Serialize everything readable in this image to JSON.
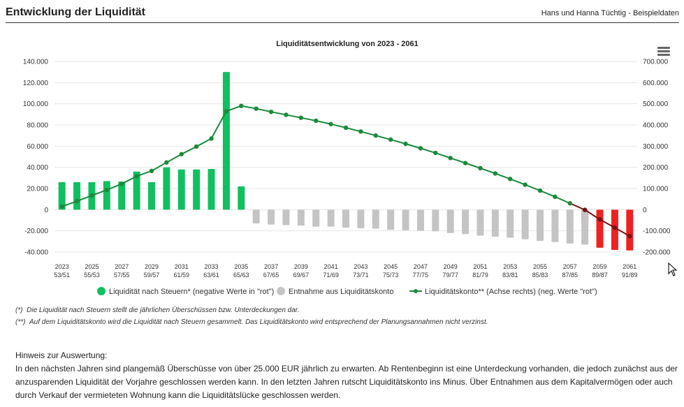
{
  "header": {
    "title": "Entwicklung der Liquidität",
    "client": "Hans und Hanna Tüchtig - Beispieldaten"
  },
  "chart_data": {
    "type": "bar",
    "title": "Liquiditätsentwicklung von 2023 - 2061",
    "x_labels": [
      {
        "year": "2023",
        "age": "53/51"
      },
      {
        "year": "2025",
        "age": "55/53"
      },
      {
        "year": "2027",
        "age": "57/55"
      },
      {
        "year": "2029",
        "age": "59/57"
      },
      {
        "year": "2031",
        "age": "61/59"
      },
      {
        "year": "2033",
        "age": "63/61"
      },
      {
        "year": "2035",
        "age": "65/63"
      },
      {
        "year": "2037",
        "age": "67/65"
      },
      {
        "year": "2039",
        "age": "69/67"
      },
      {
        "year": "2041",
        "age": "71/69"
      },
      {
        "year": "2043",
        "age": "73/71"
      },
      {
        "year": "2045",
        "age": "75/73"
      },
      {
        "year": "2047",
        "age": "77/75"
      },
      {
        "year": "2049",
        "age": "79/77"
      },
      {
        "year": "2051",
        "age": "81/79"
      },
      {
        "year": "2053",
        "age": "83/81"
      },
      {
        "year": "2055",
        "age": "85/83"
      },
      {
        "year": "2057",
        "age": "87/85"
      },
      {
        "year": "2059",
        "age": "89/87"
      },
      {
        "year": "2061",
        "age": "91/89"
      }
    ],
    "years": [
      2023,
      2024,
      2025,
      2026,
      2027,
      2028,
      2029,
      2030,
      2031,
      2032,
      2033,
      2034,
      2035,
      2036,
      2037,
      2038,
      2039,
      2040,
      2041,
      2042,
      2043,
      2044,
      2045,
      2046,
      2047,
      2048,
      2049,
      2050,
      2051,
      2052,
      2053,
      2054,
      2055,
      2056,
      2057,
      2058,
      2059,
      2060,
      2061
    ],
    "y_left": {
      "min": -40000,
      "max": 140000,
      "ticks": [
        "140.000",
        "120.000",
        "100.000",
        "80.000",
        "60.000",
        "40.000",
        "20.000",
        "0",
        "-20.000",
        "-40.000"
      ]
    },
    "y_right": {
      "min": -200000,
      "max": 700000,
      "ticks": [
        "700.000",
        "600.000",
        "500.000",
        "400.000",
        "300.000",
        "200.000",
        "100.000",
        "0",
        "-100.000",
        "-200.000"
      ]
    },
    "series": [
      {
        "name": "Liquidität nach Steuern* (negative Werte in \"rot\")",
        "kind": "bar",
        "color": "#10c060",
        "negative_color": "#ee2222",
        "values": [
          26000,
          26000,
          26000,
          27000,
          26500,
          36000,
          26000,
          40000,
          38000,
          38000,
          38500,
          130000,
          22000,
          null,
          null,
          null,
          null,
          null,
          null,
          null,
          null,
          null,
          null,
          null,
          null,
          null,
          null,
          null,
          null,
          null,
          null,
          null,
          null,
          null,
          null,
          -12000,
          -36000,
          -38000,
          -38500
        ]
      },
      {
        "name": "Entnahme aus Liquiditätskonto",
        "kind": "bar",
        "color": "#c4c4c4",
        "values": [
          null,
          null,
          null,
          null,
          null,
          null,
          null,
          null,
          null,
          null,
          null,
          null,
          null,
          -13000,
          -14000,
          -14500,
          -15000,
          -16000,
          -16000,
          -17000,
          -17500,
          -18000,
          -19000,
          -19500,
          -20000,
          -20500,
          -22000,
          -23000,
          -24500,
          -25500,
          -26500,
          -28000,
          -29500,
          -30500,
          -32000,
          -33000,
          null,
          null,
          null
        ]
      },
      {
        "name": "Liquiditätskonto** (Achse rechts) (neg. Werte \"rot\")",
        "kind": "line",
        "axis": "right",
        "color": "#1a8a3c",
        "negative_color": "#7a1010",
        "values": [
          15000,
          40000,
          67000,
          93000,
          122000,
          158000,
          183000,
          223000,
          262000,
          298000,
          336000,
          465000,
          490000,
          477000,
          462000,
          448000,
          434000,
          420000,
          404000,
          387000,
          369000,
          350000,
          331000,
          311000,
          290000,
          268000,
          244000,
          220000,
          196000,
          171000,
          145000,
          118000,
          90000,
          61000,
          30000,
          -1000,
          -46000,
          -85000,
          -125000
        ]
      }
    ],
    "grid": true,
    "legend": "bottom-center"
  },
  "footnotes": [
    {
      "marker": "(*)",
      "text": "Die Liquidität nach Steuern stellt die jährlichen Überschüssen bzw. Unterdeckungen dar."
    },
    {
      "marker": "(**)",
      "text": "Auf dem Liquiditätskonto wird die Liquidität nach Steuern gesammelt. Das Liquiditätskonto wird entsprechend der Planungsannahmen nicht verzinst."
    }
  ],
  "note": {
    "heading": "Hinweis zur Auswertung:",
    "text": "In den nächsten Jahren sind plangemäß Überschüsse von über 25.000 EUR jährlich zu erwarten. Ab Rentenbeginn ist eine Unterdeckung vorhanden, die jedoch zunächst aus der anzusparenden Liquidität der Vorjahre geschlossen werden kann. In den letzten Jahren rutscht Liquiditätskonto ins Minus. Über Entnahmen aus dem Kapitalvermögen oder auch durch Verkauf der vermieteten Wohnung kann die Liquiditätslücke geschlossen werden."
  },
  "icons": {
    "menu": "hamburger-menu-icon",
    "cursor": "mouse-pointer-icon"
  }
}
